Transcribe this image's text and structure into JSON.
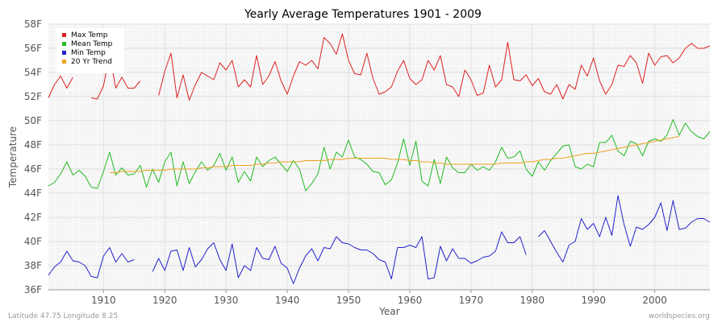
{
  "chart_data": {
    "type": "line",
    "title": "Yearly Average Temperatures 1901 - 2009",
    "xlabel": "Year",
    "ylabel": "Temperature",
    "xlim": [
      1901,
      2009
    ],
    "ylim": [
      36,
      58
    ],
    "x_ticks": [
      1910,
      1920,
      1930,
      1940,
      1950,
      1960,
      1970,
      1980,
      1990,
      2000
    ],
    "y_ticks": [
      {
        "value": 36,
        "label": "36F"
      },
      {
        "value": 38,
        "label": "38F"
      },
      {
        "value": 40,
        "label": "40F"
      },
      {
        "value": 42,
        "label": "42F"
      },
      {
        "value": 44,
        "label": "44F"
      },
      {
        "value": 46,
        "label": "46F"
      },
      {
        "value": 48,
        "label": "48F"
      },
      {
        "value": 50,
        "label": "50F"
      },
      {
        "value": 52,
        "label": "52F"
      },
      {
        "value": 54,
        "label": "54F"
      },
      {
        "value": 56,
        "label": "56F"
      },
      {
        "value": 58,
        "label": "58F"
      }
    ],
    "legend_position": "top-left",
    "series": [
      {
        "name": "Max Temp",
        "color": "#dd2222",
        "start_year": 1901,
        "values": [
          51.9,
          53.0,
          53.7,
          52.7,
          53.6,
          null,
          null,
          51.9,
          51.8,
          52.9,
          55.5,
          52.7,
          53.6,
          52.7,
          52.7,
          53.3,
          null,
          null,
          52.1,
          54.1,
          55.6,
          51.9,
          53.8,
          51.7,
          53.0,
          54.0,
          53.7,
          53.4,
          54.8,
          54.2,
          55.0,
          52.8,
          53.4,
          52.8,
          55.4,
          53.0,
          53.7,
          54.9,
          53.3,
          52.2,
          53.7,
          54.9,
          54.6,
          55.0,
          54.3,
          56.9,
          56.4,
          55.5,
          57.2,
          55.0,
          53.9,
          53.8,
          55.6,
          53.5,
          52.2,
          52.4,
          52.8,
          54.1,
          55.0,
          53.5,
          53.0,
          53.4,
          55.0,
          54.2,
          55.4,
          53.0,
          52.8,
          52.0,
          54.2,
          53.4,
          52.1,
          52.3,
          54.6,
          52.8,
          53.4,
          56.5,
          53.4,
          53.3,
          53.8,
          52.9,
          53.5,
          52.4,
          52.2,
          53.0,
          51.8,
          53.0,
          52.6,
          54.6,
          53.7,
          55.2,
          53.3,
          52.2,
          53.0,
          54.6,
          54.5,
          55.4,
          54.8,
          53.1,
          55.6,
          54.6,
          55.3,
          55.4,
          54.8,
          55.2,
          56.0,
          56.4,
          56.0,
          56.0,
          56.2
        ],
        "values_note": "approximate reading"
      },
      {
        "name": "Mean Temp",
        "color": "#22bb22",
        "start_year": 1901,
        "values": [
          44.6,
          44.9,
          45.6,
          46.6,
          45.5,
          45.9,
          45.4,
          44.5,
          44.4,
          45.8,
          47.4,
          45.5,
          46.1,
          45.5,
          45.6,
          46.3,
          44.5,
          46.0,
          44.9,
          46.6,
          47.4,
          44.6,
          46.6,
          44.8,
          45.8,
          46.6,
          45.9,
          46.3,
          47.3,
          45.9,
          47.0,
          44.9,
          45.8,
          45.0,
          47.0,
          46.2,
          46.7,
          47.0,
          46.4,
          45.8,
          46.7,
          46.0,
          44.2,
          44.8,
          45.6,
          47.8,
          46.0,
          47.4,
          47.0,
          48.4,
          47.0,
          46.8,
          46.4,
          45.8,
          45.7,
          44.7,
          45.1,
          46.5,
          48.5,
          46.3,
          48.3,
          45.0,
          44.6,
          46.8,
          44.8,
          47.0,
          46.1,
          45.7,
          45.7,
          46.4,
          45.9,
          46.2,
          45.9,
          46.6,
          47.8,
          46.9,
          47.0,
          47.5,
          46.0,
          45.4,
          46.6,
          45.9,
          46.7,
          47.3,
          47.9,
          48.0,
          46.2,
          46.0,
          46.4,
          46.2,
          48.2,
          48.2,
          48.8,
          47.5,
          47.1,
          48.3,
          48.1,
          47.1,
          48.3,
          48.5,
          48.3,
          48.8,
          50.1,
          48.8,
          49.8,
          49.1,
          48.7,
          48.5,
          49.1
        ],
        "values_note": "approximate reading"
      },
      {
        "name": "Min Temp",
        "color": "#2222cc",
        "start_year": 1901,
        "values": [
          37.2,
          37.9,
          38.3,
          39.2,
          38.4,
          38.3,
          38.0,
          37.1,
          37.0,
          38.8,
          39.5,
          38.3,
          39.0,
          38.3,
          38.5,
          null,
          null,
          37.5,
          38.6,
          37.6,
          39.2,
          39.3,
          37.6,
          39.5,
          37.9,
          38.5,
          39.4,
          39.9,
          38.5,
          37.6,
          39.8,
          37.0,
          38.0,
          37.6,
          39.5,
          38.6,
          38.5,
          39.6,
          38.2,
          37.8,
          36.5,
          37.8,
          38.8,
          39.4,
          38.4,
          39.5,
          39.4,
          40.4,
          39.9,
          39.8,
          39.5,
          39.3,
          39.3,
          39.0,
          38.5,
          38.3,
          36.9,
          39.5,
          39.5,
          39.7,
          39.5,
          40.4,
          36.9,
          37.0,
          39.6,
          38.4,
          39.4,
          38.6,
          38.6,
          38.2,
          38.4,
          38.7,
          38.8,
          39.2,
          40.8,
          39.9,
          39.9,
          40.4,
          38.9,
          null,
          40.4,
          40.9,
          40.0,
          39.1,
          38.3,
          39.7,
          40.0,
          41.9,
          41.0,
          41.5,
          40.4,
          42.0,
          40.5,
          43.8,
          41.4,
          39.6,
          41.2,
          41.0,
          41.4,
          42.0,
          43.2,
          40.9,
          43.4,
          41.0,
          41.1,
          41.6,
          41.9,
          41.9,
          41.6
        ],
        "values_note": "approximate reading"
      },
      {
        "name": "20 Yr Trend",
        "color": "#f0a020",
        "start_year": 1911,
        "values": [
          45.7,
          45.7,
          45.8,
          45.8,
          45.8,
          45.8,
          45.9,
          45.9,
          45.9,
          45.9,
          46.0,
          46.0,
          46.0,
          46.0,
          46.0,
          46.1,
          46.1,
          46.2,
          46.2,
          46.2,
          46.3,
          46.3,
          46.3,
          46.3,
          46.4,
          46.4,
          46.5,
          46.5,
          46.6,
          46.6,
          46.6,
          46.6,
          46.7,
          46.7,
          46.7,
          46.7,
          46.8,
          46.8,
          46.8,
          46.9,
          46.9,
          46.9,
          46.9,
          46.9,
          46.9,
          46.9,
          46.8,
          46.8,
          46.8,
          46.7,
          46.7,
          46.6,
          46.6,
          46.5,
          46.5,
          46.4,
          46.4,
          46.4,
          46.4,
          46.4,
          46.4,
          46.4,
          46.4,
          46.4,
          46.5,
          46.5,
          46.5,
          46.5,
          46.6,
          46.6,
          46.7,
          46.8,
          46.8,
          46.9,
          46.9,
          47.0,
          47.1,
          47.2,
          47.3,
          47.3,
          47.4,
          47.5,
          47.6,
          47.7,
          47.8,
          47.9,
          48.0,
          48.1,
          48.2,
          48.3,
          48.4,
          48.5,
          48.6,
          48.7
        ],
        "values_note": "approximate reading"
      }
    ]
  },
  "footer": {
    "left": "Latitude 47.75 Longitude 8.25",
    "right": "worldspecies.org"
  }
}
